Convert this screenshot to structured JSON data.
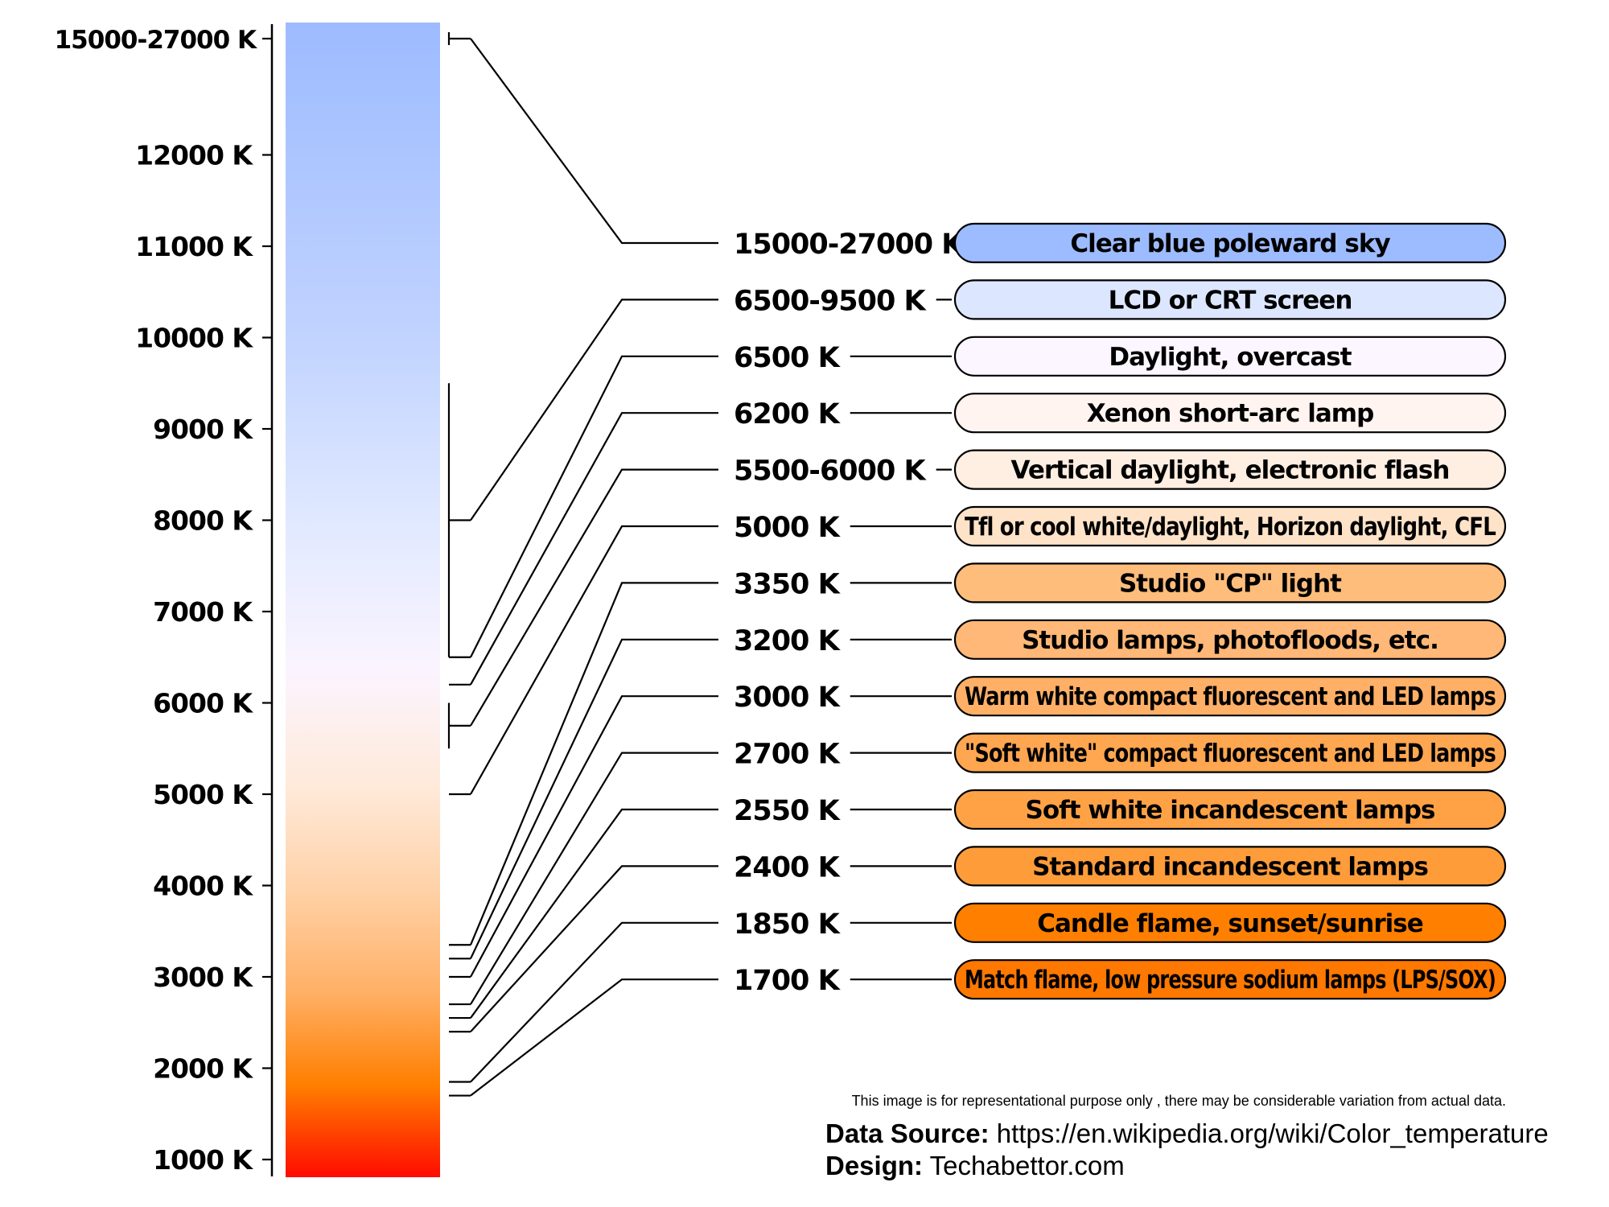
{
  "scale": {
    "top_label": "15000-27000 K",
    "ticks": [
      {
        "label": "12000 K",
        "value": 12000
      },
      {
        "label": "11000 K",
        "value": 11000
      },
      {
        "label": "10000 K",
        "value": 10000
      },
      {
        "label": "9000 K",
        "value": 9000
      },
      {
        "label": "8000 K",
        "value": 8000
      },
      {
        "label": "7000 K",
        "value": 7000
      },
      {
        "label": "6000 K",
        "value": 6000
      },
      {
        "label": "5000 K",
        "value": 5000
      },
      {
        "label": "4000 K",
        "value": 4000
      },
      {
        "label": "3000 K",
        "value": 3000
      },
      {
        "label": "2000 K",
        "value": 2000
      },
      {
        "label": "1000 K",
        "value": 1000
      }
    ]
  },
  "sources": [
    {
      "temp_label": "15000-27000 K",
      "description": "Clear blue poleward sky",
      "color": "#9dbbff",
      "kelvin_low": 15000,
      "kelvin_high": 27000
    },
    {
      "temp_label": "6500-9500 K",
      "description": "LCD or CRT screen",
      "color": "#dce6ff",
      "kelvin_low": 6500,
      "kelvin_high": 9500
    },
    {
      "temp_label": "6500 K",
      "description": "Daylight, overcast",
      "color": "#fbf6ff",
      "kelvin_low": 6500,
      "kelvin_high": 6500
    },
    {
      "temp_label": "6200 K",
      "description": "Xenon short-arc lamp",
      "color": "#fff4f0",
      "kelvin_low": 6200,
      "kelvin_high": 6200
    },
    {
      "temp_label": "5500-6000 K",
      "description": "Vertical daylight, electronic flash",
      "color": "#ffeee2",
      "kelvin_low": 5500,
      "kelvin_high": 6000
    },
    {
      "temp_label": "5000 K",
      "description": "Tfl or cool white/daylight, Horizon daylight, CFL",
      "color": "#ffe3c8",
      "kelvin_low": 5000,
      "kelvin_high": 5000
    },
    {
      "temp_label": "3350 K",
      "description": "Studio \"CP\" light",
      "color": "#ffbd7c",
      "kelvin_low": 3350,
      "kelvin_high": 3350
    },
    {
      "temp_label": "3200 K",
      "description": "Studio lamps, photofloods, etc.",
      "color": "#ffb877",
      "kelvin_low": 3200,
      "kelvin_high": 3200
    },
    {
      "temp_label": "3000 K",
      "description": "Warm white compact fluorescent and LED lamps",
      "color": "#ffb066",
      "kelvin_low": 3000,
      "kelvin_high": 3000
    },
    {
      "temp_label": "2700 K",
      "description": "\"Soft white\" compact fluorescent and LED lamps",
      "color": "#ffa650",
      "kelvin_low": 2700,
      "kelvin_high": 2700
    },
    {
      "temp_label": "2550 K",
      "description": "Soft white incandescent lamps",
      "color": "#ffa246",
      "kelvin_low": 2550,
      "kelvin_high": 2550
    },
    {
      "temp_label": "2400 K",
      "description": "Standard incandescent lamps",
      "color": "#ff9c3a",
      "kelvin_low": 2400,
      "kelvin_high": 2400
    },
    {
      "temp_label": "1850 K",
      "description": "Candle flame, sunset/sunrise",
      "color": "#ff7f00",
      "kelvin_low": 1850,
      "kelvin_high": 1850
    },
    {
      "temp_label": "1700 K",
      "description": "Match flame, low pressure sodium lamps (LPS/SOX)",
      "color": "#ff7800",
      "kelvin_low": 1700,
      "kelvin_high": 1700
    }
  ],
  "footer": {
    "disclaimer": "This image is for representational purpose only , there may be considerable variation from actual data.",
    "source_label": "Data Source:",
    "source_value": "https://en.wikipedia.org/wiki/Color_temperature",
    "design_label": "Design:",
    "design_value": "Techabettor.com"
  }
}
